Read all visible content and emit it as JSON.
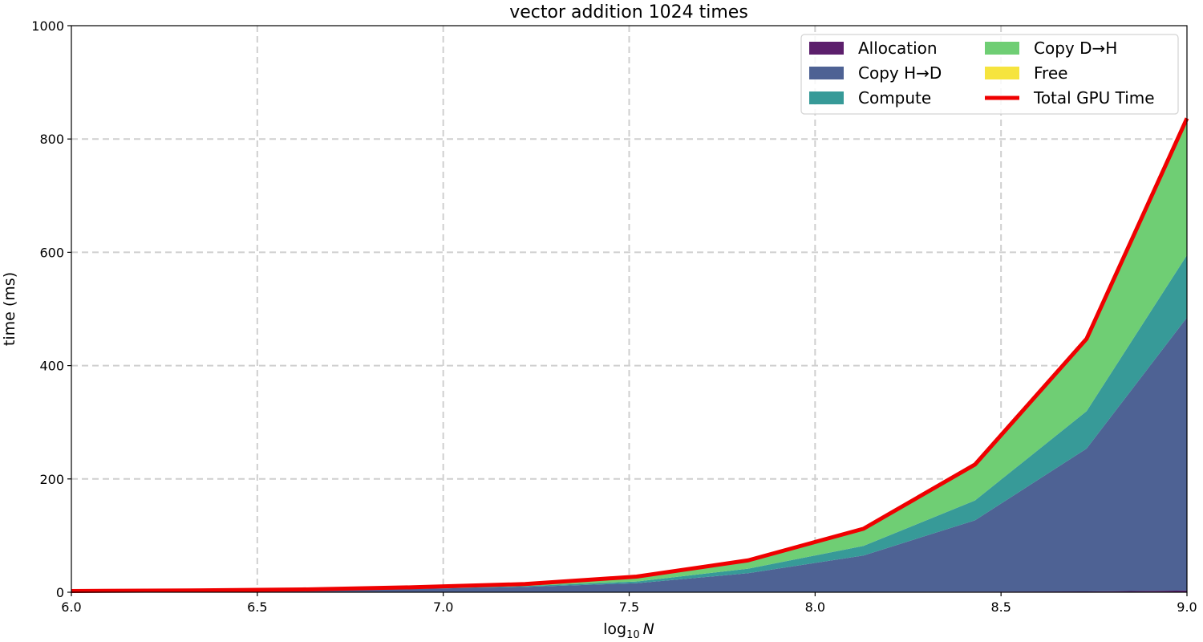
{
  "chart_data": {
    "type": "area",
    "stacked": true,
    "title": "vector addition 1024 times",
    "xlabel_base": "log",
    "xlabel_sub": "10",
    "xlabel_var": "N",
    "ylabel": "time (ms)",
    "xlim": [
      6.0,
      9.0
    ],
    "ylim": [
      0,
      1000
    ],
    "xticks": [
      "6.0",
      "6.5",
      "7.0",
      "7.5",
      "8.0",
      "8.5",
      "9.0"
    ],
    "xtick_values": [
      6.0,
      6.5,
      7.0,
      7.5,
      8.0,
      8.5,
      9.0
    ],
    "yticks": [
      "0",
      "200",
      "400",
      "600",
      "800",
      "1000"
    ],
    "ytick_values": [
      0,
      200,
      400,
      600,
      800,
      1000
    ],
    "grid": true,
    "legend_position": "top-right",
    "x": [
      6.0,
      6.32,
      6.62,
      6.92,
      7.22,
      7.52,
      7.82,
      8.13,
      8.43,
      8.73,
      9.0
    ],
    "series": [
      {
        "name": "Allocation",
        "color": "#5c1f6c",
        "values": [
          0.3,
          0.3,
          0.3,
          0.4,
          0.4,
          0.5,
          0.6,
          0.8,
          1.0,
          1.5,
          3.0
        ]
      },
      {
        "name": "Copy H→D",
        "color": "#4e6294",
        "values": [
          1.2,
          1.8,
          3.0,
          5.5,
          9.0,
          15.5,
          33.0,
          64.0,
          126.0,
          252.0,
          482.0
        ]
      },
      {
        "name": "Compute",
        "color": "#379a98",
        "values": [
          0.2,
          0.3,
          0.5,
          0.8,
          1.5,
          3.0,
          8.0,
          17.0,
          35.0,
          66.0,
          110.0
        ]
      },
      {
        "name": "Copy D→H",
        "color": "#6fce74",
        "values": [
          0.4,
          0.6,
          1.0,
          2.0,
          3.5,
          8.5,
          14.5,
          30.0,
          63.0,
          127.0,
          240.0
        ]
      },
      {
        "name": "Free",
        "color": "#f6e43e",
        "values": [
          0.1,
          0.1,
          0.1,
          0.1,
          0.1,
          0.1,
          0.2,
          0.3,
          0.5,
          0.8,
          1.5
        ]
      }
    ],
    "total_line": {
      "name": "Total GPU Time",
      "color": "#ef0000",
      "values": [
        2.2,
        3.1,
        4.9,
        8.8,
        14.5,
        27.6,
        56.3,
        112.1,
        225.5,
        447.3,
        836.5
      ]
    }
  }
}
